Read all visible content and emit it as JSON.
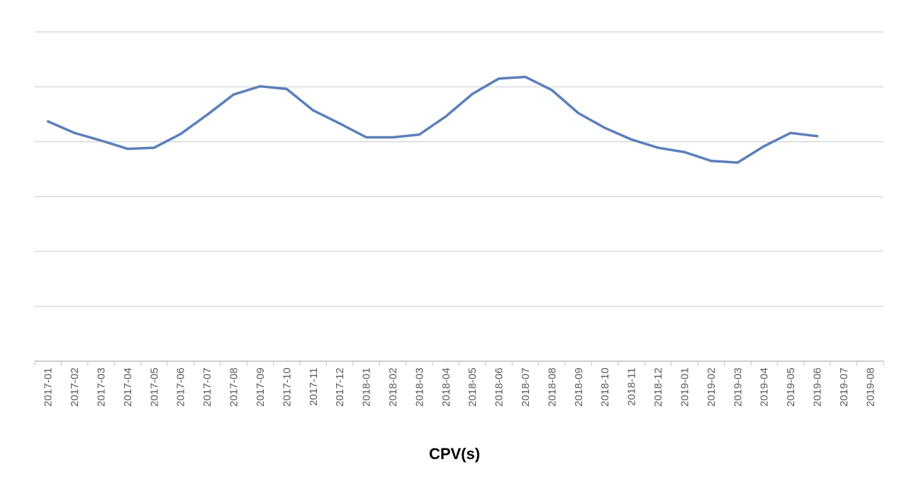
{
  "chart_data": {
    "type": "line",
    "title": "",
    "xlabel": "CPV(s)",
    "ylabel": "",
    "y_tick_labels_visible": false,
    "ylim": [
      0,
      6
    ],
    "grid": true,
    "categories": [
      "2017-01",
      "2017-02",
      "2017-03",
      "2017-04",
      "2017-05",
      "2017-06",
      "2017-07",
      "2017-08",
      "2017-09",
      "2017-10",
      "2017-11",
      "2017-12",
      "2018-01",
      "2018-02",
      "2018-03",
      "2018-04",
      "2018-05",
      "2018-06",
      "2018-07",
      "2018-08",
      "2018-09",
      "2018-10",
      "2018-11",
      "2018-12",
      "2019-01",
      "2019-02",
      "2019-03",
      "2019-04",
      "2019-05",
      "2019-06",
      "2019-07",
      "2019-08"
    ],
    "series": [
      {
        "color": "#5b7fba",
        "values": [
          4.37,
          4.16,
          4.02,
          3.87,
          3.89,
          4.14,
          4.49,
          4.86,
          5.01,
          4.96,
          4.57,
          4.33,
          4.08,
          4.08,
          4.13,
          4.46,
          4.87,
          5.15,
          5.18,
          4.94,
          4.52,
          4.25,
          4.04,
          3.89,
          3.81,
          3.65,
          3.62,
          3.92,
          4.16,
          4.1,
          null,
          null
        ]
      }
    ],
    "colors": {
      "line": "#5b7fba",
      "grid": "#d9d9d9",
      "axis": "#bfbfbf"
    }
  }
}
